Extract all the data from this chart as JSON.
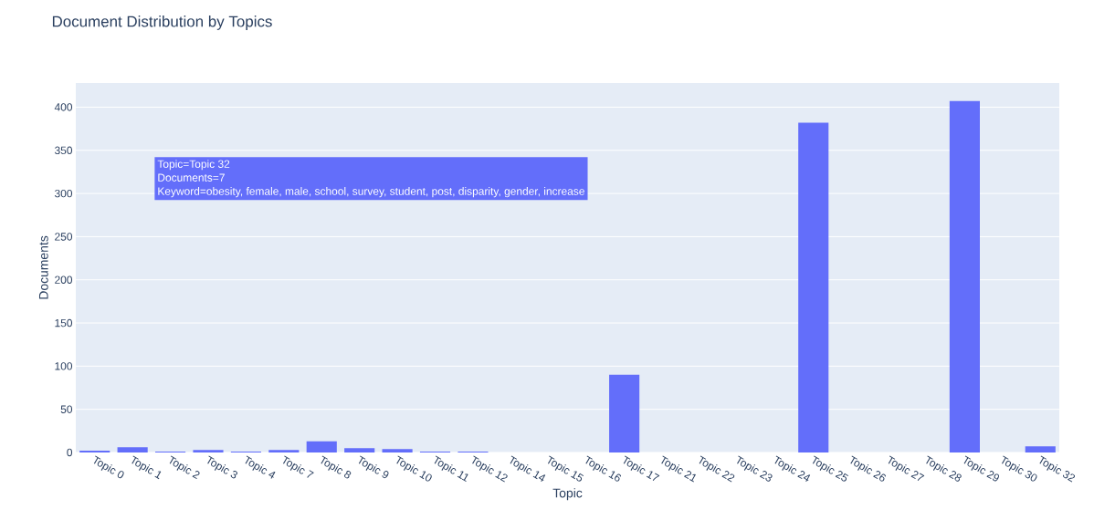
{
  "chart_data": {
    "type": "bar",
    "title": "Document Distribution by Topics",
    "xlabel": "Topic",
    "ylabel": "Documents",
    "categories": [
      "Topic 0",
      "Topic 1",
      "Topic 2",
      "Topic 3",
      "Topic 4",
      "Topic 7",
      "Topic 8",
      "Topic 9",
      "Topic 10",
      "Topic 11",
      "Topic 12",
      "Topic 14",
      "Topic 15",
      "Topic 16",
      "Topic 17",
      "Topic 21",
      "Topic 22",
      "Topic 23",
      "Topic 24",
      "Topic 25",
      "Topic 26",
      "Topic 27",
      "Topic 28",
      "Topic 29",
      "Topic 30",
      "Topic 32"
    ],
    "values": [
      2,
      6,
      1,
      3,
      1,
      3,
      13,
      5,
      4,
      1,
      1,
      null,
      null,
      null,
      90,
      null,
      null,
      null,
      null,
      382,
      null,
      null,
      null,
      407,
      null,
      7
    ],
    "color": "#636efa",
    "ylim": [
      0,
      428
    ],
    "yticks": [
      0,
      50,
      100,
      150,
      200,
      250,
      300,
      350,
      400
    ],
    "grid": "y",
    "annotations": [
      "Topic=Topic 32",
      "Documents=7",
      "Keyword=obesity, female, male, school, survey, student, post, disparity, gender, increase"
    ]
  }
}
